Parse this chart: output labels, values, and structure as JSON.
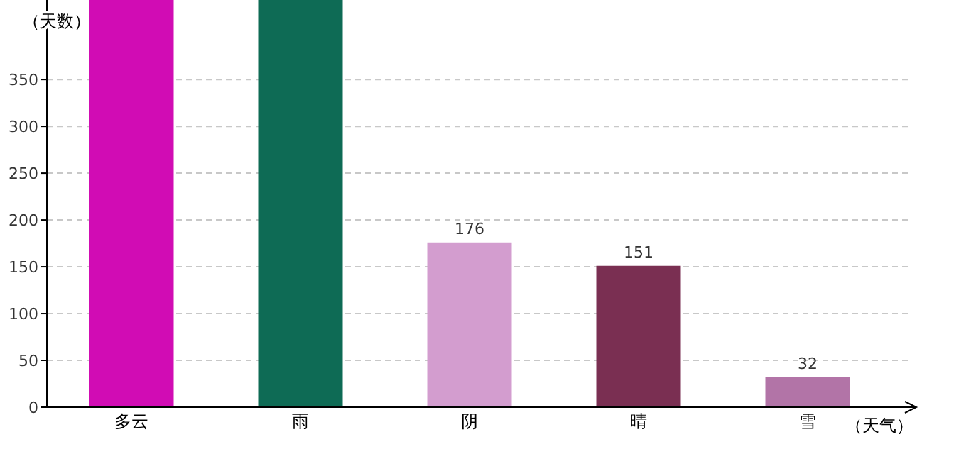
{
  "chart_data": {
    "type": "bar",
    "xlabel": "（天气）",
    "ylabel": "（天数）",
    "categories": [
      "多云",
      "雨",
      "阴",
      "晴",
      "雪"
    ],
    "values": [
      435,
      435,
      176,
      151,
      32
    ],
    "colors": [
      "#d10cb4",
      "#0e6b55",
      "#d39dcf",
      "#7a2f52",
      "#b274a7"
    ],
    "value_labels": [
      null,
      null,
      "176",
      "151",
      "32"
    ],
    "ylim": [
      0,
      435
    ],
    "yticks": [
      0,
      50,
      100,
      150,
      200,
      250,
      300,
      350
    ],
    "grid": "y"
  }
}
